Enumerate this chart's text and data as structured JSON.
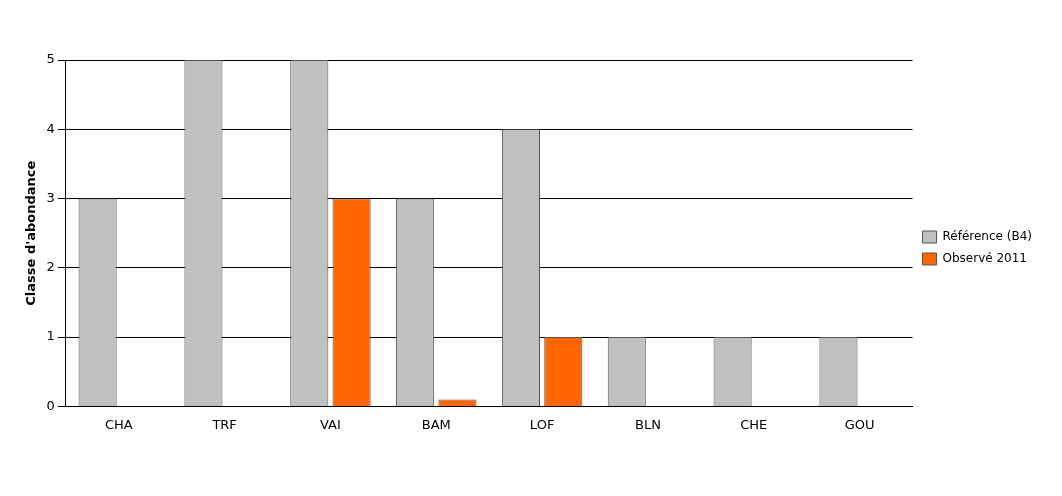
{
  "chart_data": {
    "type": "bar",
    "ylabel": "Classe d'abondance",
    "categories": [
      "CHA",
      "TRF",
      "VAI",
      "BAM",
      "LOF",
      "BLN",
      "CHE",
      "GOU"
    ],
    "series": [
      {
        "name": "Référence (B4)",
        "color": "#c0c0c0",
        "values": [
          3,
          5,
          5,
          3,
          4,
          1,
          1,
          1
        ]
      },
      {
        "name": "Observé 2011",
        "color": "#ff6600",
        "values": [
          null,
          null,
          3,
          0.1,
          1,
          null,
          null,
          null
        ]
      }
    ],
    "ylim": [
      0,
      5
    ],
    "yticks": [
      0,
      1,
      2,
      3,
      4,
      5
    ],
    "grid": "y",
    "legend": "right"
  }
}
